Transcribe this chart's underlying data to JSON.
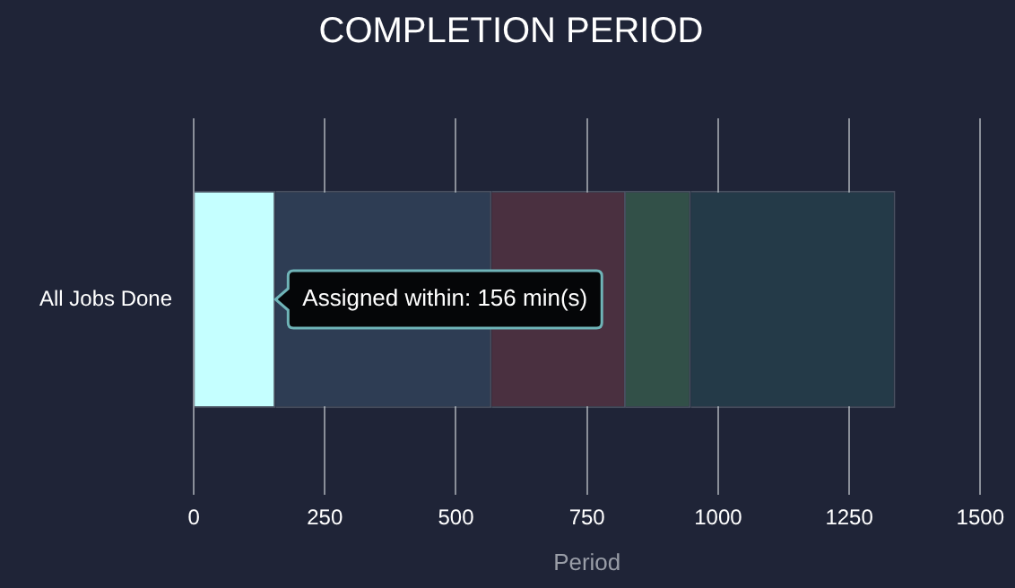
{
  "chart_data": {
    "type": "bar",
    "title": "COMPLETION PERIOD",
    "xlabel": "Period",
    "orientation": "horizontal",
    "stacked": true,
    "categories": [
      "All Jobs Done"
    ],
    "series": [
      {
        "color": "#c5ffff",
        "values": [
          156
        ]
      },
      {
        "color": "#2e3d54",
        "values": [
          412
        ]
      },
      {
        "color": "#4a3040",
        "values": [
          256
        ]
      },
      {
        "color": "#325048",
        "values": [
          124
        ]
      },
      {
        "color": "#243a48",
        "values": [
          390
        ]
      }
    ],
    "xlim": [
      0,
      1500
    ],
    "xticks": [
      0,
      250,
      500,
      750,
      1000,
      1250,
      1500
    ],
    "grid": "x",
    "legend": false,
    "annotations": [
      {
        "text": "Assigned within: 156 min(s)",
        "x": 156,
        "y": "All Jobs Done"
      }
    ]
  }
}
